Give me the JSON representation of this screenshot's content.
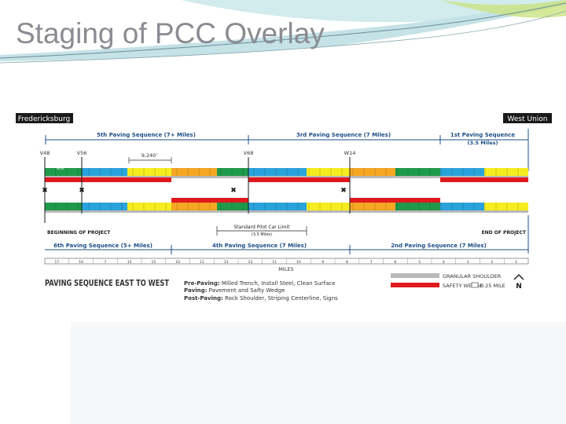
{
  "slide": {
    "title": "Staging of PCC Overlay"
  },
  "diagram": {
    "left_town": "Fredericksburg",
    "right_town": "West Union",
    "top_sequences": [
      {
        "label": "5th  Paving Sequence (7+ Miles)"
      },
      {
        "label": "3rd  Paving Sequence (7 Miles)"
      },
      {
        "label": "1st Paving Sequence",
        "sub": "(3.5 Miles)"
      }
    ],
    "stations": [
      "V48",
      "V56",
      "V68",
      "W14"
    ],
    "dimension": "9,240'",
    "small_label": "W56",
    "beginning": "BEGINNING OF PROJECT",
    "end": "END OF PROJECT",
    "pilot_car": {
      "label": "Standard Pilot Car Limit",
      "sub": "(3.5 Miles)"
    },
    "bottom_sequences": [
      {
        "label": "6th Paving Sequence (5+ Miles)"
      },
      {
        "label": "4th Paving Sequence (7 Miles)"
      },
      {
        "label": "2nd Paving Sequence (7 Miles)"
      }
    ],
    "mile_numbers": [
      "17",
      "16",
      "7",
      "15",
      "15",
      "10",
      "11",
      "13",
      "12",
      "11",
      "10",
      "9",
      "8",
      "7",
      "6",
      "5",
      "4",
      "3",
      "2",
      "1"
    ],
    "miles_label": "MILES",
    "heading": "PAVING SEQUENCE EAST TO WEST",
    "notes": [
      {
        "term": "Pre-Paving:",
        "text": "Milled Trench, Install Steel, Clean Surface"
      },
      {
        "term": "Paving:",
        "text": "Pavement and Safty Wedge"
      },
      {
        "term": "Post-Paving:",
        "text": "Rock Shoulder, Striping Centerline, Signs"
      }
    ],
    "legend": [
      {
        "label": "GRANULAR SHOULDER",
        "color": "#b9b9b9"
      },
      {
        "label": "SAFETY WEDGE",
        "color": "#e0191e"
      }
    ],
    "scale_label": "0.25 MILE",
    "north_label": "N",
    "colors": {
      "green": "#1f9a4a",
      "blue": "#2aa3dc",
      "yellow": "#f6ec1f",
      "orange": "#f5a623",
      "red": "#e0191e",
      "gray": "#b9b9b9",
      "navy": "#1d4f86"
    }
  }
}
